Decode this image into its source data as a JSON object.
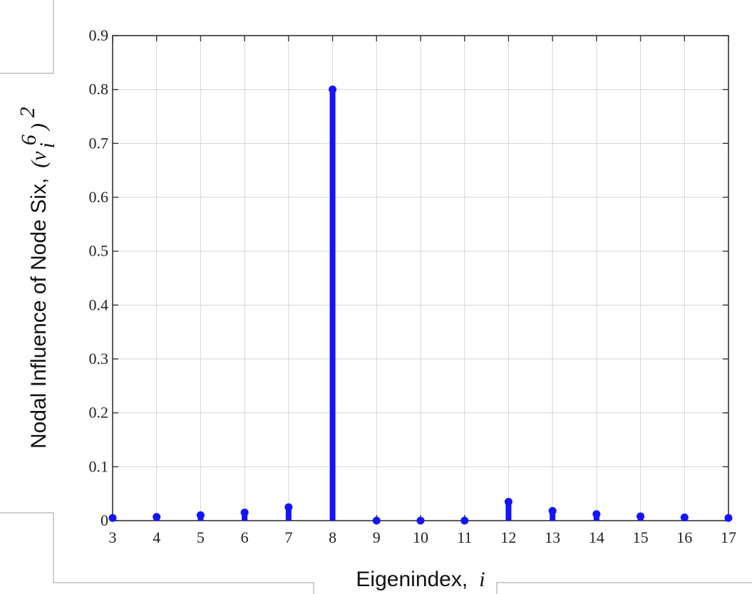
{
  "chart_data": {
    "type": "stem",
    "xlabel": "Eigenindex,",
    "xlabel_var": "i",
    "ylabel": "Nodal Influence of Node Six,",
    "ylabel_var": "(v",
    "ylabel_sup": "6",
    "ylabel_sub": "i",
    "ylabel_close": ")",
    "ylabel_pow": "2",
    "xlim": [
      3,
      17
    ],
    "ylim": [
      0,
      0.9
    ],
    "grid": true,
    "series_color": "#1414ff",
    "x_ticks": [
      "3",
      "4",
      "5",
      "6",
      "7",
      "8",
      "9",
      "10",
      "11",
      "12",
      "13",
      "14",
      "15",
      "16",
      "17"
    ],
    "y_ticks": [
      "0",
      "0.1",
      "0.2",
      "0.3",
      "0.4",
      "0.5",
      "0.6",
      "0.7",
      "0.8",
      "0.9"
    ],
    "x": [
      3,
      4,
      5,
      6,
      7,
      8,
      9,
      10,
      11,
      12,
      13,
      14,
      15,
      16,
      17
    ],
    "values": [
      0.005,
      0.007,
      0.01,
      0.015,
      0.025,
      0.8,
      0.0,
      0.0,
      0.0,
      0.035,
      0.018,
      0.012,
      0.008,
      0.006,
      0.005
    ]
  }
}
